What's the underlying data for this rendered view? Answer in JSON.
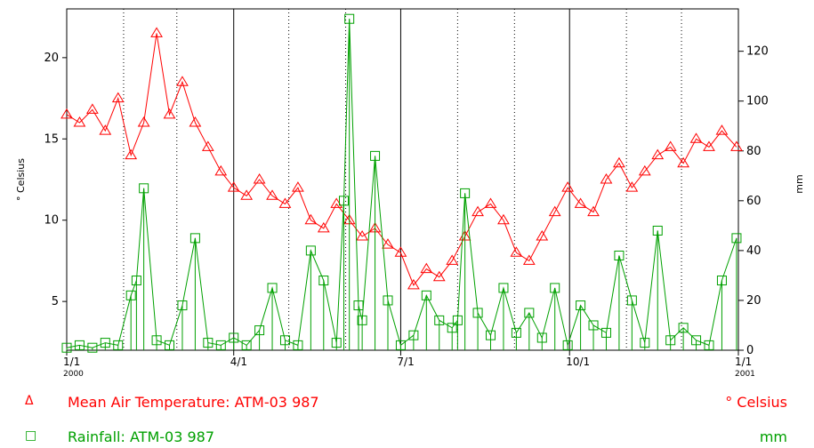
{
  "chart_data": {
    "type": "line",
    "x_start": "2000-01-01",
    "x_end": "2001-01-01",
    "x_ticks": [
      {
        "date": "2000-01-01",
        "label": "1/1",
        "sublabel": "2000"
      },
      {
        "date": "2000-04-01",
        "label": "4/1",
        "sublabel": ""
      },
      {
        "date": "2000-07-01",
        "label": "7/1",
        "sublabel": ""
      },
      {
        "date": "2000-10-01",
        "label": "10/1",
        "sublabel": ""
      },
      {
        "date": "2001-01-01",
        "label": "1/1",
        "sublabel": "2001"
      }
    ],
    "left_axis": {
      "label": "° Celsius",
      "ylim": [
        2,
        23
      ],
      "ticks": [
        5,
        10,
        15,
        20
      ]
    },
    "right_axis": {
      "label": "mm",
      "ylim": [
        0,
        137
      ],
      "ticks": [
        0,
        20,
        40,
        60,
        80,
        100,
        120
      ]
    },
    "series": [
      {
        "name": "Mean Air Temperature: ATM-03 987",
        "unit": "° Celsius",
        "axis": "left",
        "color": "#ff0000",
        "marker": "triangle",
        "x": [
          "2000-01-01",
          "2000-01-08",
          "2000-01-15",
          "2000-01-22",
          "2000-01-29",
          "2000-02-05",
          "2000-02-12",
          "2000-02-19",
          "2000-02-26",
          "2000-03-04",
          "2000-03-11",
          "2000-03-18",
          "2000-03-25",
          "2000-04-01",
          "2000-04-08",
          "2000-04-15",
          "2000-04-22",
          "2000-04-29",
          "2000-05-06",
          "2000-05-13",
          "2000-05-20",
          "2000-05-27",
          "2000-06-03",
          "2000-06-10",
          "2000-06-17",
          "2000-06-24",
          "2000-07-01",
          "2000-07-08",
          "2000-07-15",
          "2000-07-22",
          "2000-07-29",
          "2000-08-05",
          "2000-08-12",
          "2000-08-19",
          "2000-08-26",
          "2000-09-02",
          "2000-09-09",
          "2000-09-16",
          "2000-09-23",
          "2000-09-30",
          "2000-10-07",
          "2000-10-14",
          "2000-10-21",
          "2000-10-28",
          "2000-11-04",
          "2000-11-11",
          "2000-11-18",
          "2000-11-25",
          "2000-12-02",
          "2000-12-09",
          "2000-12-16",
          "2000-12-23",
          "2000-12-31"
        ],
        "y": [
          16.5,
          16.0,
          16.8,
          15.5,
          17.5,
          14.0,
          16.0,
          21.5,
          16.5,
          18.5,
          16.0,
          14.5,
          13.0,
          12.0,
          11.5,
          12.5,
          11.5,
          11.0,
          12.0,
          10.0,
          9.5,
          11.0,
          10.0,
          9.0,
          9.5,
          8.5,
          8.0,
          6.0,
          7.0,
          6.5,
          7.5,
          9.0,
          10.5,
          11.0,
          10.0,
          8.0,
          7.5,
          9.0,
          10.5,
          12.0,
          11.0,
          10.5,
          12.5,
          13.5,
          12.0,
          13.0,
          14.0,
          14.5,
          13.5,
          15.0,
          14.5,
          15.5,
          14.5
        ]
      },
      {
        "name": "Rainfall: ATM-03 987",
        "unit": "mm",
        "axis": "right",
        "color": "#00a000",
        "marker": "square",
        "x": [
          "2000-01-01",
          "2000-01-08",
          "2000-01-15",
          "2000-01-22",
          "2000-01-29",
          "2000-02-05",
          "2000-02-08",
          "2000-02-12",
          "2000-02-19",
          "2000-02-26",
          "2000-03-04",
          "2000-03-11",
          "2000-03-18",
          "2000-03-25",
          "2000-04-01",
          "2000-04-08",
          "2000-04-15",
          "2000-04-22",
          "2000-04-29",
          "2000-05-06",
          "2000-05-13",
          "2000-05-20",
          "2000-05-27",
          "2000-05-31",
          "2000-06-03",
          "2000-06-08",
          "2000-06-10",
          "2000-06-17",
          "2000-06-24",
          "2000-07-01",
          "2000-07-08",
          "2000-07-15",
          "2000-07-22",
          "2000-07-29",
          "2000-08-01",
          "2000-08-05",
          "2000-08-12",
          "2000-08-19",
          "2000-08-26",
          "2000-09-02",
          "2000-09-09",
          "2000-09-16",
          "2000-09-23",
          "2000-09-30",
          "2000-10-07",
          "2000-10-14",
          "2000-10-21",
          "2000-10-28",
          "2000-11-04",
          "2000-11-11",
          "2000-11-18",
          "2000-11-25",
          "2000-12-02",
          "2000-12-09",
          "2000-12-16",
          "2000-12-23",
          "2000-12-31"
        ],
        "y": [
          1,
          2,
          1,
          3,
          2,
          22,
          28,
          65,
          4,
          2,
          18,
          45,
          3,
          2,
          5,
          2,
          8,
          25,
          4,
          2,
          40,
          28,
          3,
          60,
          133,
          18,
          12,
          78,
          20,
          2,
          6,
          22,
          12,
          9,
          12,
          63,
          15,
          6,
          25,
          7,
          15,
          5,
          25,
          2,
          18,
          10,
          7,
          38,
          20,
          3,
          48,
          4,
          9,
          4,
          2,
          28,
          45
        ]
      }
    ]
  },
  "legend": [
    {
      "symbol": "Δ",
      "label": "Mean Air Temperature: ATM-03 987",
      "unit": "° Celsius",
      "color": "#ff0000"
    },
    {
      "symbol": "□",
      "label": "Rainfall: ATM-03 987",
      "unit": "mm",
      "color": "#00a000"
    }
  ]
}
